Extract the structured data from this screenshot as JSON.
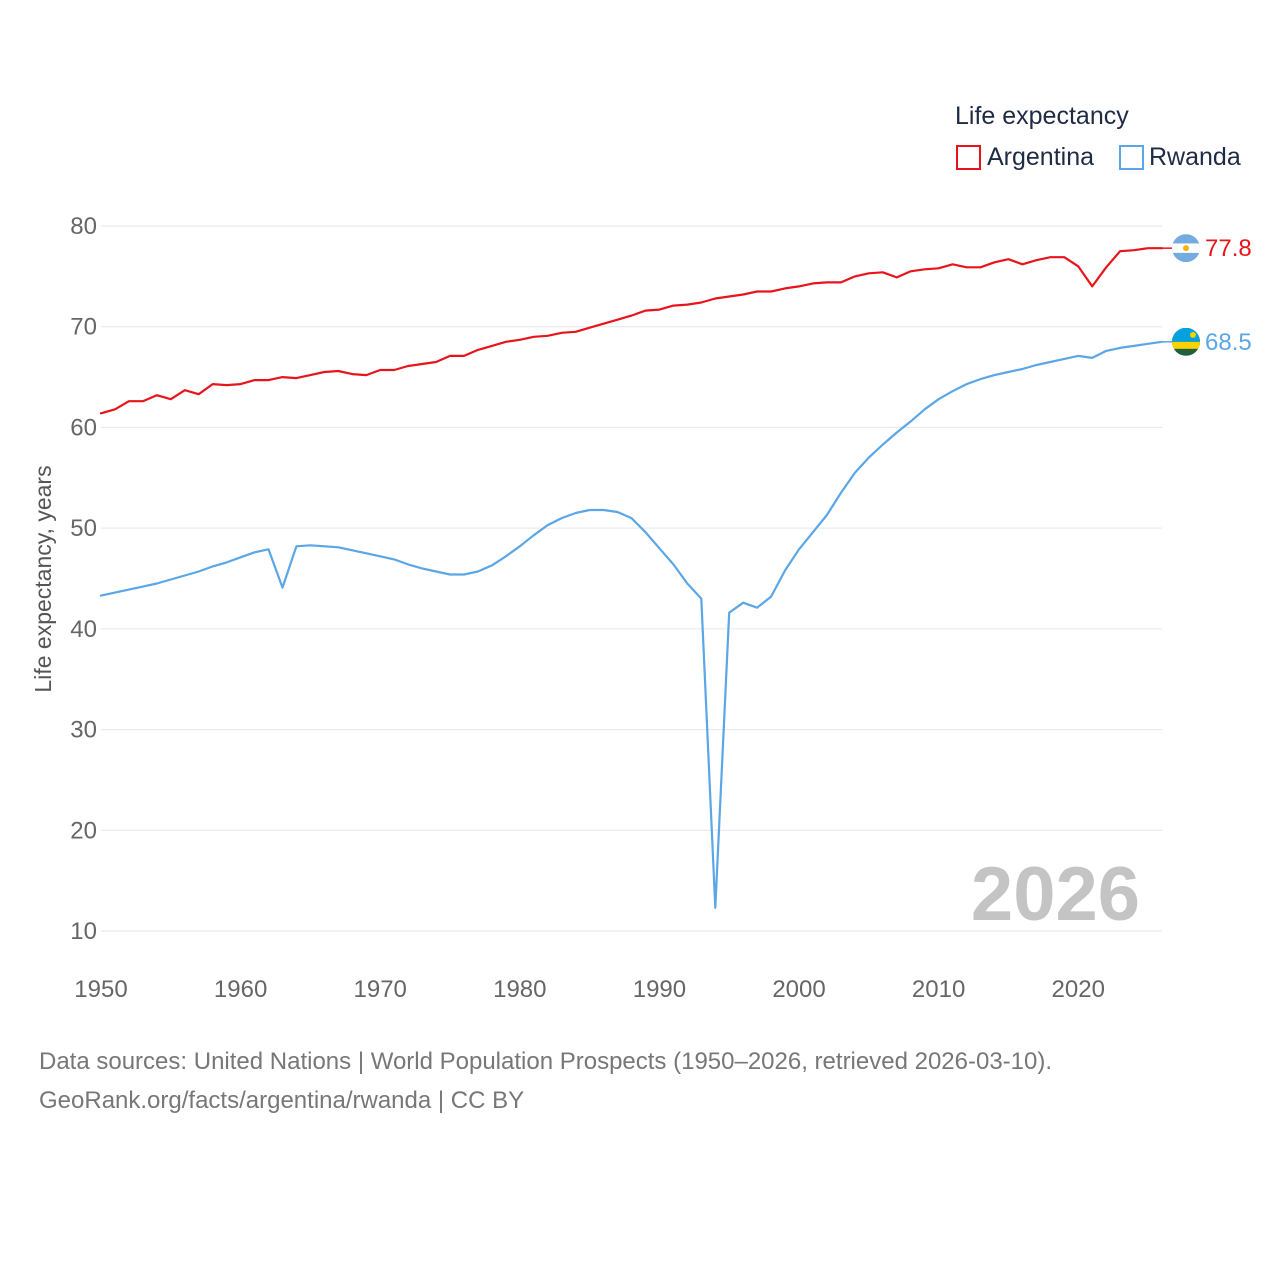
{
  "legend": {
    "title": "Life expectancy",
    "items": [
      {
        "label": "Argentina",
        "color": "#e8141b"
      },
      {
        "label": "Rwanda",
        "color": "#5aa6e6"
      }
    ]
  },
  "watermark_year": "2026",
  "footer": {
    "line1": "Data sources: United Nations | World Population Prospects (1950–2026, retrieved 2026-03-10).",
    "line2": "GeoRank.org/facts/argentina/rwanda | CC BY"
  },
  "end_labels": {
    "argentina": "77.8",
    "rwanda": "68.5"
  },
  "flags": {
    "argentina": "argentina-flag-icon",
    "rwanda": "rwanda-flag-icon"
  },
  "chart_data": {
    "type": "line",
    "title": "Life expectancy",
    "xlabel": "",
    "ylabel": "Life expectancy, years",
    "xlim": [
      1950,
      2026
    ],
    "ylim": [
      10,
      80
    ],
    "xticks": [
      1950,
      1960,
      1970,
      1980,
      1990,
      2000,
      2010,
      2020
    ],
    "yticks": [
      10,
      20,
      30,
      40,
      50,
      60,
      70,
      80
    ],
    "x": [
      1950,
      1951,
      1952,
      1953,
      1954,
      1955,
      1956,
      1957,
      1958,
      1959,
      1960,
      1961,
      1962,
      1963,
      1964,
      1965,
      1966,
      1967,
      1968,
      1969,
      1970,
      1971,
      1972,
      1973,
      1974,
      1975,
      1976,
      1977,
      1978,
      1979,
      1980,
      1981,
      1982,
      1983,
      1984,
      1985,
      1986,
      1987,
      1988,
      1989,
      1990,
      1991,
      1992,
      1993,
      1994,
      1995,
      1996,
      1997,
      1998,
      1999,
      2000,
      2001,
      2002,
      2003,
      2004,
      2005,
      2006,
      2007,
      2008,
      2009,
      2010,
      2011,
      2012,
      2013,
      2014,
      2015,
      2016,
      2017,
      2018,
      2019,
      2020,
      2021,
      2022,
      2023,
      2024,
      2025,
      2026
    ],
    "series": [
      {
        "name": "Argentina",
        "color": "#e8141b",
        "values": [
          61.4,
          61.8,
          62.6,
          62.6,
          63.2,
          62.8,
          63.7,
          63.3,
          64.3,
          64.2,
          64.3,
          64.7,
          64.7,
          65.0,
          64.9,
          65.2,
          65.5,
          65.6,
          65.3,
          65.2,
          65.7,
          65.7,
          66.1,
          66.3,
          66.5,
          67.1,
          67.1,
          67.7,
          68.1,
          68.5,
          68.7,
          69.0,
          69.1,
          69.4,
          69.5,
          69.9,
          70.3,
          70.7,
          71.1,
          71.6,
          71.7,
          72.1,
          72.2,
          72.4,
          72.8,
          73.0,
          73.2,
          73.5,
          73.5,
          73.8,
          74.0,
          74.3,
          74.4,
          74.4,
          75.0,
          75.3,
          75.4,
          74.9,
          75.5,
          75.7,
          75.8,
          76.2,
          75.9,
          75.9,
          76.4,
          76.7,
          76.2,
          76.6,
          76.9,
          76.9,
          76.0,
          74.0,
          75.9,
          77.5,
          77.6,
          77.8,
          77.8
        ]
      },
      {
        "name": "Rwanda",
        "color": "#5aa6e6",
        "values": [
          43.3,
          43.6,
          43.9,
          44.2,
          44.5,
          44.9,
          45.3,
          45.7,
          46.2,
          46.6,
          47.1,
          47.6,
          47.9,
          44.1,
          48.2,
          48.3,
          48.2,
          48.1,
          47.8,
          47.5,
          47.2,
          46.9,
          46.4,
          46.0,
          45.7,
          45.4,
          45.4,
          45.7,
          46.3,
          47.2,
          48.2,
          49.3,
          50.3,
          51.0,
          51.5,
          51.8,
          51.8,
          51.6,
          51.0,
          49.6,
          48.0,
          46.4,
          44.5,
          43.0,
          12.3,
          41.6,
          42.6,
          42.1,
          43.2,
          45.8,
          47.9,
          49.6,
          51.3,
          53.5,
          55.5,
          57.0,
          58.3,
          59.5,
          60.6,
          61.8,
          62.8,
          63.6,
          64.3,
          64.8,
          65.2,
          65.5,
          65.8,
          66.2,
          66.5,
          66.8,
          67.1,
          66.9,
          67.6,
          67.9,
          68.1,
          68.3,
          68.5
        ]
      }
    ]
  }
}
